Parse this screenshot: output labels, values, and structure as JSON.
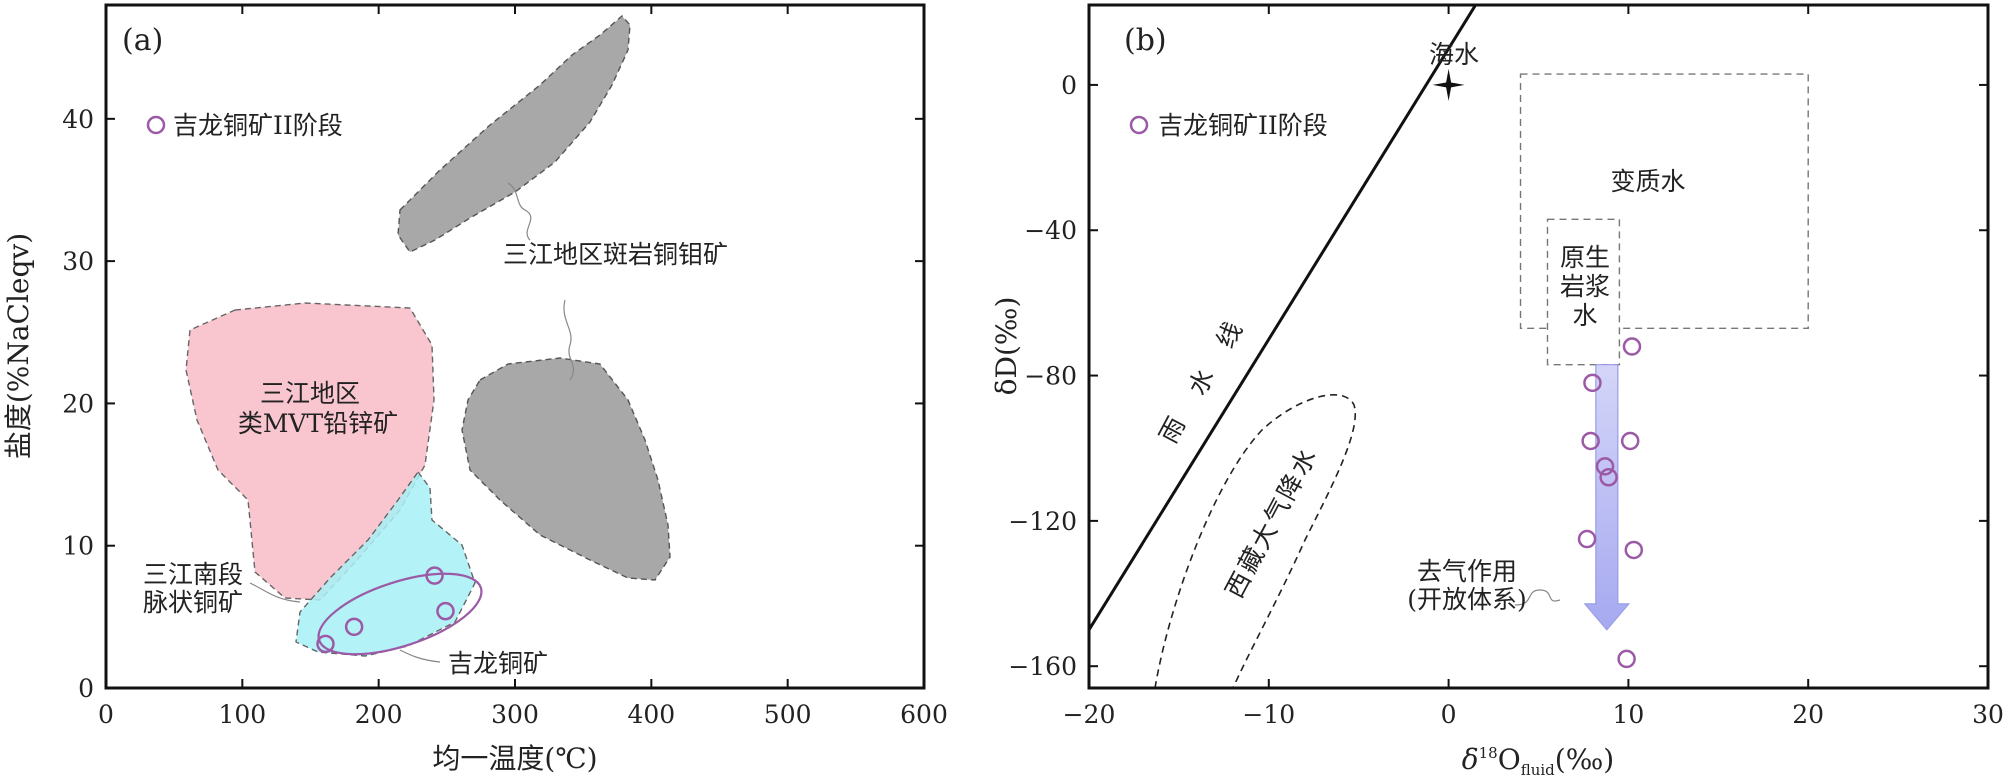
{
  "chart_data": [
    {
      "panel": "(a)",
      "type": "scatter",
      "xlabel": "均一温度(℃)",
      "ylabel": "盐度(%NaCleqv)",
      "xlim": [
        0,
        600
      ],
      "ylim": [
        0,
        48
      ],
      "x_ticks": [
        0,
        100,
        200,
        300,
        400,
        500,
        600
      ],
      "y_ticks": [
        0,
        10,
        20,
        30,
        40
      ],
      "legend": {
        "label": "吉龙铜矿II阶段",
        "marker": "open circle",
        "color": "#9b59a6",
        "position": "top-left"
      },
      "series": [
        {
          "name": "吉龙铜矿II阶段",
          "points": [
            {
              "x": 161,
              "y": 3.1
            },
            {
              "x": 182,
              "y": 4.3
            },
            {
              "x": 241,
              "y": 7.9
            },
            {
              "x": 249,
              "y": 5.4
            }
          ]
        }
      ],
      "fields": [
        {
          "label": "三江地区斑岩铜钼矿",
          "color": "#a8a8a8"
        },
        {
          "label": "三江地区类MVT铅锌矿",
          "label_lines": [
            "三江地区",
            "类MVT铅锌矿"
          ],
          "color": "#f9c6d0"
        },
        {
          "label": "三江南段脉状铜矿",
          "label_lines": [
            "三江南段",
            "脉状铜矿"
          ],
          "color": "#a6f0f4"
        },
        {
          "label": "吉龙铜矿",
          "color": "#9b59a6"
        }
      ],
      "grid": false
    },
    {
      "panel": "(b)",
      "type": "scatter",
      "xlabel": "δ18Ofluid(‰)",
      "xlabel_parts": {
        "delta": "δ",
        "sup": "18",
        "base": "O",
        "sub": "fluid",
        "unit": "(‰)"
      },
      "ylabel": "δD(‰)",
      "xlim": [
        -20,
        30
      ],
      "ylim": [
        -166,
        22
      ],
      "x_ticks": [
        -20,
        -10,
        0,
        10,
        20,
        30
      ],
      "y_ticks": [
        -160,
        -120,
        -80,
        -40,
        0
      ],
      "legend": {
        "label": "吉龙铜矿II阶段",
        "marker": "open circle",
        "color": "#9b59a6",
        "position": "top-left"
      },
      "series": [
        {
          "name": "吉龙铜矿II阶段",
          "points": [
            {
              "x": 10.2,
              "y": -72
            },
            {
              "x": 8.0,
              "y": -82
            },
            {
              "x": 7.9,
              "y": -98
            },
            {
              "x": 10.1,
              "y": -98
            },
            {
              "x": 8.7,
              "y": -105
            },
            {
              "x": 8.9,
              "y": -108
            },
            {
              "x": 7.7,
              "y": -125
            },
            {
              "x": 10.3,
              "y": -128
            },
            {
              "x": 9.9,
              "y": -158
            }
          ]
        }
      ],
      "meteoric_water_line": {
        "label": "雨水线",
        "label_chars": [
          "雨",
          "水",
          "线"
        ],
        "slope": 8,
        "intercept": 10
      },
      "seawater": {
        "label": "海水",
        "x": 0,
        "y": 0
      },
      "fields": [
        {
          "label": "变质水",
          "x": [
            4,
            20
          ],
          "y": [
            -67,
            3
          ]
        },
        {
          "label": "原生岩浆水",
          "label_lines": [
            "原生",
            "岩浆",
            "水"
          ],
          "x": [
            5.5,
            9.5
          ],
          "y": [
            -77,
            -37
          ]
        },
        {
          "label": "西藏大气降水",
          "label_chars": [
            "西",
            "藏",
            "大",
            "气",
            "降",
            "水"
          ]
        }
      ],
      "arrow": {
        "label": "去气作用(开放体系)",
        "label_lines": [
          "去气作用",
          "(开放体系)"
        ],
        "x": 8.8,
        "y_from": -77,
        "y_to": -150,
        "color": "#b7b9f4"
      },
      "grid": false
    }
  ]
}
